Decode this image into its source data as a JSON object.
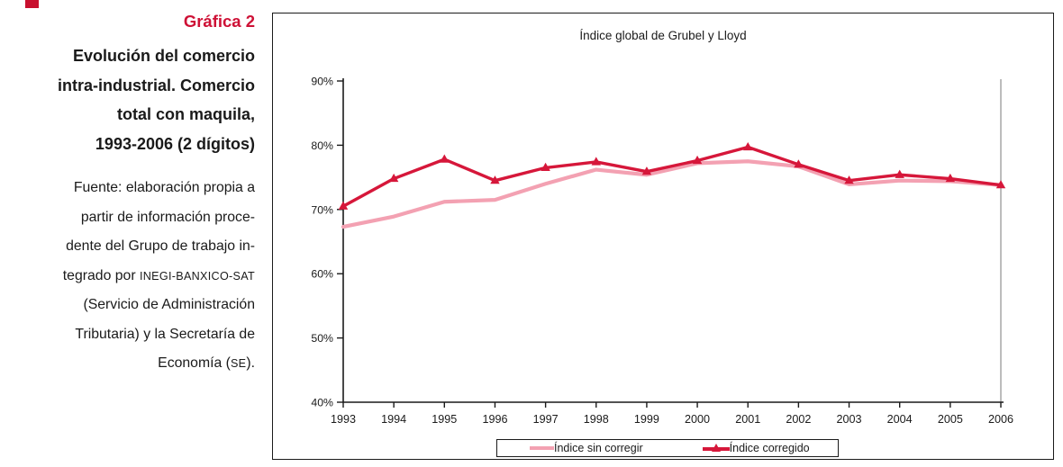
{
  "page": {
    "corner_marker_color": "#C8102E"
  },
  "sidebar": {
    "heading": "Gráfica 2",
    "heading_color": "#CE1136",
    "title": "Evolución del comercio\nintra-industrial. Comercio\ntotal con maquila,\n1993-2006 (2 dígitos)",
    "source_lines": [
      [
        {
          "t": "Fuente: elaboración propia a"
        }
      ],
      [
        {
          "t": "partir de información proce-"
        }
      ],
      [
        {
          "t": "dente del Grupo de trabajo in-"
        }
      ],
      [
        {
          "t": "tegrado por "
        },
        {
          "t": "INEGI-BANXICO-SAT",
          "sc": true
        }
      ],
      [
        {
          "t": "(Servicio de Administración"
        }
      ],
      [
        {
          "t": "Tributaria) y la Secretaría de"
        }
      ],
      [
        {
          "t": "Economía ("
        },
        {
          "t": "SE",
          "sc": true
        },
        {
          "t": ")."
        }
      ]
    ]
  },
  "chart_data": {
    "type": "line",
    "title": "Índice global de Grubel y Lloyd",
    "categories": [
      "1993",
      "1994",
      "1995",
      "1996",
      "1997",
      "1998",
      "1999",
      "2000",
      "2001",
      "2002",
      "2003",
      "2004",
      "2005",
      "2006"
    ],
    "series": [
      {
        "name": "Índice sin corregir",
        "color": "#F3A1B2",
        "marker": "none",
        "values": [
          67.3,
          68.9,
          71.2,
          71.5,
          74.0,
          76.2,
          75.4,
          77.2,
          77.5,
          76.7,
          73.9,
          74.5,
          74.4,
          73.8
        ]
      },
      {
        "name": "Índice corregido",
        "color": "#D6173A",
        "marker": "triangle",
        "values": [
          70.5,
          74.8,
          77.8,
          74.5,
          76.5,
          77.4,
          75.9,
          77.6,
          79.7,
          77.0,
          74.5,
          75.4,
          74.8,
          73.8
        ]
      }
    ],
    "ylim": [
      40,
      90
    ],
    "yticks": [
      40,
      50,
      60,
      70,
      80,
      90
    ],
    "ytick_suffix": "%",
    "grid": false,
    "legend_position": "bottom-center",
    "axis_color": "#1a1a1a",
    "plot_right_border_color": "#909090"
  }
}
